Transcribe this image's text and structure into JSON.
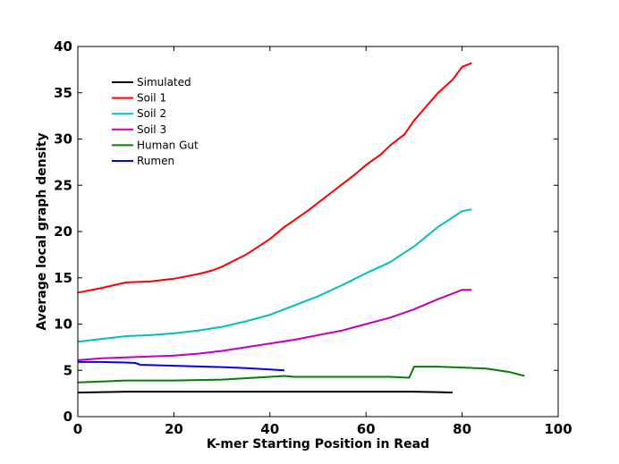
{
  "chart_data": {
    "type": "line",
    "title": "",
    "xlabel": "K-mer Starting Position in Read",
    "ylabel": "Average local graph density",
    "xlim": [
      0,
      100
    ],
    "ylim": [
      0,
      40
    ],
    "xticks": [
      0,
      20,
      40,
      60,
      80,
      100
    ],
    "yticks": [
      0,
      5,
      10,
      15,
      20,
      25,
      30,
      35,
      40
    ],
    "grid": false,
    "legend_position": "top-left",
    "series": [
      {
        "name": "Simulated",
        "color": "#000000",
        "x": [
          0,
          5,
          10,
          20,
          30,
          40,
          50,
          60,
          70,
          75,
          78
        ],
        "y": [
          2.6,
          2.65,
          2.7,
          2.7,
          2.7,
          2.7,
          2.7,
          2.7,
          2.7,
          2.65,
          2.6
        ]
      },
      {
        "name": "Soil 1",
        "color": "#ff0000",
        "x": [
          0,
          5,
          10,
          15,
          20,
          25,
          28,
          30,
          35,
          40,
          43,
          45,
          48,
          50,
          53,
          55,
          58,
          60,
          63,
          65,
          68,
          70,
          73,
          75,
          78,
          80,
          82
        ],
        "y": [
          13.4,
          13.9,
          14.5,
          14.6,
          14.9,
          15.4,
          15.8,
          16.2,
          17.5,
          19.2,
          20.5,
          21.2,
          22.3,
          23.1,
          24.3,
          25.1,
          26.3,
          27.2,
          28.3,
          29.3,
          30.5,
          32.0,
          33.8,
          35.0,
          36.4,
          37.8,
          38.2
        ]
      },
      {
        "name": "Soil 2",
        "color": "#00bfbf",
        "x": [
          0,
          5,
          10,
          15,
          20,
          25,
          30,
          35,
          40,
          45,
          50,
          55,
          60,
          65,
          70,
          75,
          80,
          82
        ],
        "y": [
          8.1,
          8.4,
          8.7,
          8.8,
          9.0,
          9.3,
          9.7,
          10.3,
          11.0,
          12.0,
          13.0,
          14.2,
          15.5,
          16.7,
          18.4,
          20.5,
          22.2,
          22.4
        ]
      },
      {
        "name": "Soil 3",
        "color": "#bf00bf",
        "x": [
          0,
          5,
          10,
          15,
          20,
          25,
          30,
          35,
          40,
          45,
          50,
          55,
          60,
          65,
          70,
          75,
          80,
          82
        ],
        "y": [
          6.1,
          6.3,
          6.4,
          6.5,
          6.6,
          6.8,
          7.1,
          7.5,
          7.9,
          8.3,
          8.8,
          9.3,
          10.0,
          10.7,
          11.6,
          12.7,
          13.7,
          13.7
        ]
      },
      {
        "name": "Human Gut",
        "color": "#008000",
        "x": [
          0,
          5,
          10,
          20,
          30,
          40,
          43,
          45,
          50,
          55,
          60,
          65,
          69,
          70,
          75,
          80,
          85,
          90,
          93
        ],
        "y": [
          3.7,
          3.8,
          3.9,
          3.9,
          4.0,
          4.3,
          4.4,
          4.3,
          4.3,
          4.3,
          4.3,
          4.3,
          4.2,
          5.4,
          5.4,
          5.3,
          5.2,
          4.8,
          4.4
        ]
      },
      {
        "name": "Rumen",
        "color": "#0000ff",
        "x": [
          0,
          5,
          10,
          12,
          13,
          20,
          30,
          35,
          40,
          43
        ],
        "y": [
          5.9,
          5.9,
          5.85,
          5.8,
          5.6,
          5.5,
          5.35,
          5.25,
          5.1,
          5.0
        ]
      }
    ]
  }
}
